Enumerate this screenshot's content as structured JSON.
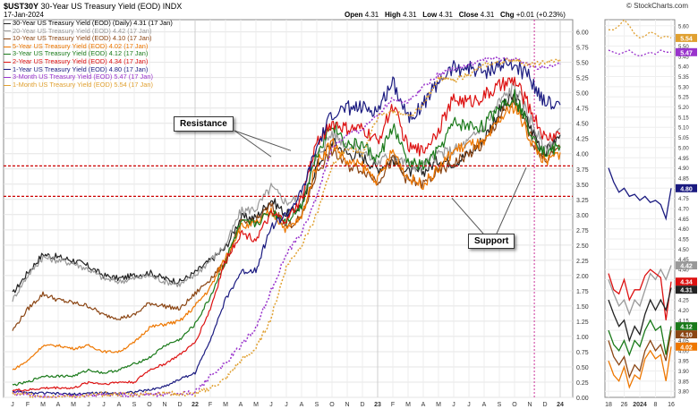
{
  "header": {
    "symbol": "$UST30Y",
    "name": "30-Year US Treasury Yield (EOD) INDX",
    "date": "17-Jan-2024",
    "open_label": "Open",
    "open": "4.31",
    "high_label": "High",
    "high": "4.31",
    "low_label": "Low",
    "low": "4.31",
    "close_label": "Close",
    "close": "4.31",
    "chg_label": "Chg",
    "chg": "+0.01 (+0.23%)",
    "copyright": "© StockCharts.com"
  },
  "legend": [
    {
      "text": "30-Year US Treasury Yield (EOD) (Daily) 4.31 (17 Jan)",
      "color": "#222222"
    },
    {
      "text": "20-Year US Treasury Yield (EOD) 4.42 (17 Jan)",
      "color": "#999999"
    },
    {
      "text": "10-Year US Treasury Yield (EOD) 4.10 (17 Jan)",
      "color": "#8b4513"
    },
    {
      "text": "5-Year US Treasury Yield (EOD) 4.02 (17 Jan)",
      "color": "#ee7700"
    },
    {
      "text": "3-Year US Treasury Yield (EOD) 4.12 (17 Jan)",
      "color": "#1a7a1a"
    },
    {
      "text": "2-Year US Treasury Yield (EOD) 4.34 (17 Jan)",
      "color": "#dd1111"
    },
    {
      "text": "1-Year US Treasury Yield (EOD) 4.80 (17 Jan)",
      "color": "#1a1a80"
    },
    {
      "text": "3-Month US Treasury Yield (EOD) 5.47 (17 Jan)",
      "color": "#9933cc"
    },
    {
      "text": "1-Month US Treasury Yield (EOD) 5.54 (17 Jan)",
      "color": "#e0a030"
    }
  ],
  "annotations": {
    "resistance": "Resistance",
    "support": "Support"
  },
  "chart_data": {
    "type": "line",
    "x_ticks": [
      "J",
      "F",
      "M",
      "A",
      "M",
      "J",
      "J",
      "A",
      "S",
      "O",
      "N",
      "D",
      "22",
      "F",
      "M",
      "A",
      "M",
      "J",
      "J",
      "A",
      "S",
      "O",
      "N",
      "D",
      "23",
      "F",
      "M",
      "A",
      "M",
      "J",
      "J",
      "A",
      "S",
      "O",
      "N",
      "D",
      "24"
    ],
    "y_ticks": [
      "0.00",
      "0.25",
      "0.50",
      "0.75",
      "1.00",
      "1.25",
      "1.50",
      "1.75",
      "2.00",
      "2.25",
      "2.50",
      "2.75",
      "3.00",
      "3.25",
      "3.50",
      "3.75",
      "4.00",
      "4.25",
      "4.50",
      "4.75",
      "5.00",
      "5.25",
      "5.50",
      "5.75",
      "6.00"
    ],
    "ylim": [
      0,
      6.2
    ],
    "x_month_index": [
      0,
      1,
      2,
      3,
      4,
      5,
      6,
      7,
      8,
      9,
      10,
      11,
      12,
      13,
      14,
      15,
      16,
      17,
      18,
      19,
      20,
      21,
      22,
      23,
      24,
      25,
      26,
      27,
      28,
      29,
      30,
      31,
      32,
      33,
      34,
      35,
      36
    ],
    "series": [
      {
        "name": "30-Year",
        "dashed": false,
        "color": "#222222",
        "values": [
          1.7,
          2.05,
          2.35,
          2.3,
          2.25,
          2.15,
          2.0,
          1.95,
          2.0,
          2.05,
          1.95,
          1.9,
          2.05,
          2.25,
          2.45,
          2.95,
          2.95,
          3.25,
          3.0,
          3.15,
          3.8,
          4.2,
          4.0,
          3.95,
          3.75,
          3.9,
          3.7,
          3.7,
          3.9,
          3.85,
          4.0,
          4.25,
          4.7,
          4.95,
          4.45,
          4.0,
          4.31
        ]
      },
      {
        "name": "20-Year",
        "dashed": false,
        "color": "#999999",
        "values": [
          1.6,
          2.0,
          2.3,
          2.25,
          2.2,
          2.1,
          1.95,
          1.9,
          1.95,
          2.0,
          1.9,
          1.85,
          2.0,
          2.25,
          2.5,
          3.05,
          3.1,
          3.45,
          3.2,
          3.3,
          3.95,
          4.35,
          4.15,
          4.05,
          3.85,
          4.0,
          3.8,
          3.8,
          4.0,
          4.05,
          4.2,
          4.45,
          4.85,
          5.1,
          4.6,
          4.05,
          4.42
        ]
      },
      {
        "name": "10-Year",
        "dashed": false,
        "color": "#8b4513",
        "values": [
          1.1,
          1.45,
          1.7,
          1.6,
          1.55,
          1.5,
          1.35,
          1.3,
          1.35,
          1.55,
          1.5,
          1.45,
          1.7,
          1.95,
          2.2,
          2.85,
          2.9,
          3.15,
          2.8,
          2.95,
          3.7,
          4.05,
          3.8,
          3.75,
          3.55,
          3.9,
          3.55,
          3.5,
          3.7,
          3.85,
          4.0,
          4.15,
          4.6,
          4.85,
          4.3,
          3.9,
          4.1
        ]
      },
      {
        "name": "5-Year",
        "dashed": false,
        "color": "#ee7700",
        "values": [
          0.45,
          0.6,
          0.85,
          0.85,
          0.8,
          0.85,
          0.75,
          0.75,
          0.9,
          1.15,
          1.2,
          1.25,
          1.5,
          1.8,
          2.3,
          2.8,
          2.85,
          3.05,
          2.75,
          2.95,
          3.85,
          4.2,
          3.85,
          3.8,
          3.55,
          4.05,
          3.6,
          3.5,
          3.75,
          4.05,
          4.15,
          4.15,
          4.55,
          4.8,
          4.25,
          3.85,
          4.02
        ]
      },
      {
        "name": "3-Year",
        "dashed": false,
        "color": "#1a7a1a",
        "values": [
          0.2,
          0.25,
          0.35,
          0.35,
          0.35,
          0.45,
          0.4,
          0.45,
          0.55,
          0.65,
          0.85,
          0.95,
          1.2,
          1.65,
          2.25,
          2.85,
          2.85,
          3.05,
          2.9,
          3.15,
          4.0,
          4.5,
          4.15,
          4.15,
          3.9,
          4.45,
          3.85,
          3.8,
          4.05,
          4.5,
          4.45,
          4.45,
          4.8,
          4.95,
          4.4,
          4.0,
          4.12
        ]
      },
      {
        "name": "2-Year",
        "dashed": false,
        "color": "#dd1111",
        "values": [
          0.12,
          0.12,
          0.15,
          0.16,
          0.15,
          0.25,
          0.22,
          0.25,
          0.25,
          0.45,
          0.55,
          0.7,
          0.9,
          1.45,
          2.25,
          2.7,
          2.6,
          3.0,
          2.9,
          3.25,
          4.2,
          4.5,
          4.4,
          4.4,
          4.2,
          4.8,
          4.1,
          4.05,
          4.4,
          4.9,
          4.85,
          4.95,
          5.1,
          5.2,
          4.75,
          4.25,
          4.34
        ]
      },
      {
        "name": "1-Year",
        "dashed": false,
        "color": "#1a1a80",
        "values": [
          0.1,
          0.07,
          0.07,
          0.06,
          0.05,
          0.07,
          0.07,
          0.07,
          0.09,
          0.12,
          0.18,
          0.3,
          0.4,
          0.95,
          1.6,
          2.05,
          2.1,
          2.8,
          3.0,
          3.35,
          4.1,
          4.65,
          4.75,
          4.75,
          4.7,
          5.2,
          4.6,
          4.8,
          5.2,
          5.4,
          5.4,
          5.35,
          5.45,
          5.45,
          5.25,
          4.85,
          4.8
        ]
      },
      {
        "name": "3-Month",
        "dashed": true,
        "color": "#9933cc",
        "values": [
          0.08,
          0.05,
          0.03,
          0.02,
          0.02,
          0.04,
          0.05,
          0.05,
          0.04,
          0.05,
          0.05,
          0.06,
          0.08,
          0.35,
          0.55,
          0.85,
          1.15,
          1.75,
          2.35,
          2.7,
          3.3,
          4.1,
          4.3,
          4.4,
          4.65,
          4.9,
          4.85,
          5.1,
          5.3,
          5.4,
          5.45,
          5.55,
          5.55,
          5.55,
          5.45,
          5.4,
          5.47
        ]
      },
      {
        "name": "1-Month",
        "dashed": true,
        "color": "#e0a030",
        "values": [
          0.06,
          0.04,
          0.03,
          0.01,
          0.01,
          0.03,
          0.05,
          0.05,
          0.05,
          0.06,
          0.07,
          0.05,
          0.05,
          0.15,
          0.3,
          0.6,
          0.8,
          1.3,
          2.15,
          2.5,
          3.0,
          3.8,
          4.1,
          4.0,
          4.6,
          4.7,
          4.6,
          4.8,
          5.25,
          5.2,
          5.3,
          5.45,
          5.5,
          5.55,
          5.45,
          5.5,
          5.54
        ]
      }
    ],
    "reference_lines": [
      3.8,
      3.3
    ]
  },
  "zoom_panel": {
    "x_ticks": [
      "18",
      "26",
      "2024",
      "8",
      "16"
    ],
    "y_ticks": [
      "3.80",
      "3.85",
      "3.90",
      "3.95",
      "4.00",
      "4.05",
      "4.10",
      "4.15",
      "4.20",
      "4.25",
      "4.30",
      "4.35",
      "4.40",
      "4.45",
      "4.50",
      "4.55",
      "4.60",
      "4.65",
      "4.70",
      "4.75",
      "4.80",
      "4.85",
      "4.90",
      "4.95",
      "5.00",
      "5.05",
      "5.10",
      "5.15",
      "5.20",
      "5.25",
      "5.30",
      "5.35",
      "5.40",
      "5.45",
      "5.50",
      "5.55",
      "5.60"
    ],
    "ylim": [
      3.77,
      5.63
    ],
    "badges": [
      {
        "label": "5.54",
        "value": 5.54,
        "color": "#e0a030"
      },
      {
        "label": "5.47",
        "value": 5.47,
        "color": "#9933cc"
      },
      {
        "label": "4.80",
        "value": 4.8,
        "color": "#1a1a80"
      },
      {
        "label": "4.42",
        "value": 4.42,
        "color": "#999999"
      },
      {
        "label": "4.34",
        "value": 4.34,
        "color": "#dd1111"
      },
      {
        "label": "4.31",
        "value": 4.31,
        "color": "#222222"
      },
      {
        "label": "4.12",
        "value": 4.12,
        "color": "#1a7a1a"
      },
      {
        "label": "4.10",
        "value": 4.1,
        "color": "#8b4513"
      },
      {
        "label": "4.02",
        "value": 4.02,
        "color": "#ee7700"
      }
    ],
    "series": [
      {
        "color": "#e0a030",
        "dashed": true,
        "values": [
          5.58,
          5.58,
          5.6,
          5.63,
          5.6,
          5.56,
          5.54,
          5.55,
          5.57,
          5.56,
          5.54,
          5.55,
          5.54
        ]
      },
      {
        "color": "#9933cc",
        "dashed": true,
        "values": [
          5.48,
          5.47,
          5.46,
          5.47,
          5.48,
          5.46,
          5.45,
          5.46,
          5.47,
          5.46,
          5.48,
          5.47,
          5.47
        ]
      },
      {
        "color": "#1a1a80",
        "dashed": false,
        "values": [
          4.9,
          4.83,
          4.78,
          4.8,
          4.76,
          4.77,
          4.74,
          4.76,
          4.73,
          4.74,
          4.72,
          4.65,
          4.8
        ]
      },
      {
        "color": "#999999",
        "dashed": false,
        "values": [
          4.35,
          4.28,
          4.22,
          4.25,
          4.18,
          4.25,
          4.22,
          4.3,
          4.38,
          4.35,
          4.4,
          4.35,
          4.42
        ]
      },
      {
        "color": "#dd1111",
        "dashed": false,
        "values": [
          4.38,
          4.3,
          4.28,
          4.35,
          4.25,
          4.3,
          4.3,
          4.37,
          4.4,
          4.38,
          4.36,
          4.15,
          4.34
        ]
      },
      {
        "color": "#222222",
        "dashed": false,
        "values": [
          4.25,
          4.18,
          4.12,
          4.15,
          4.05,
          4.12,
          4.08,
          4.18,
          4.25,
          4.2,
          4.25,
          4.2,
          4.31
        ]
      },
      {
        "color": "#1a7a1a",
        "dashed": false,
        "values": [
          4.1,
          4.03,
          4.0,
          4.05,
          3.98,
          4.05,
          4.02,
          4.1,
          4.15,
          4.1,
          4.12,
          3.98,
          4.12
        ]
      },
      {
        "color": "#8b4513",
        "dashed": false,
        "values": [
          4.05,
          3.97,
          3.93,
          3.97,
          3.87,
          3.93,
          3.9,
          4.0,
          4.05,
          4.0,
          4.03,
          3.95,
          4.1
        ]
      },
      {
        "color": "#ee7700",
        "dashed": false,
        "values": [
          3.95,
          3.88,
          3.85,
          3.92,
          3.82,
          3.88,
          3.86,
          3.96,
          4.0,
          3.96,
          3.98,
          3.85,
          4.02
        ]
      }
    ]
  }
}
